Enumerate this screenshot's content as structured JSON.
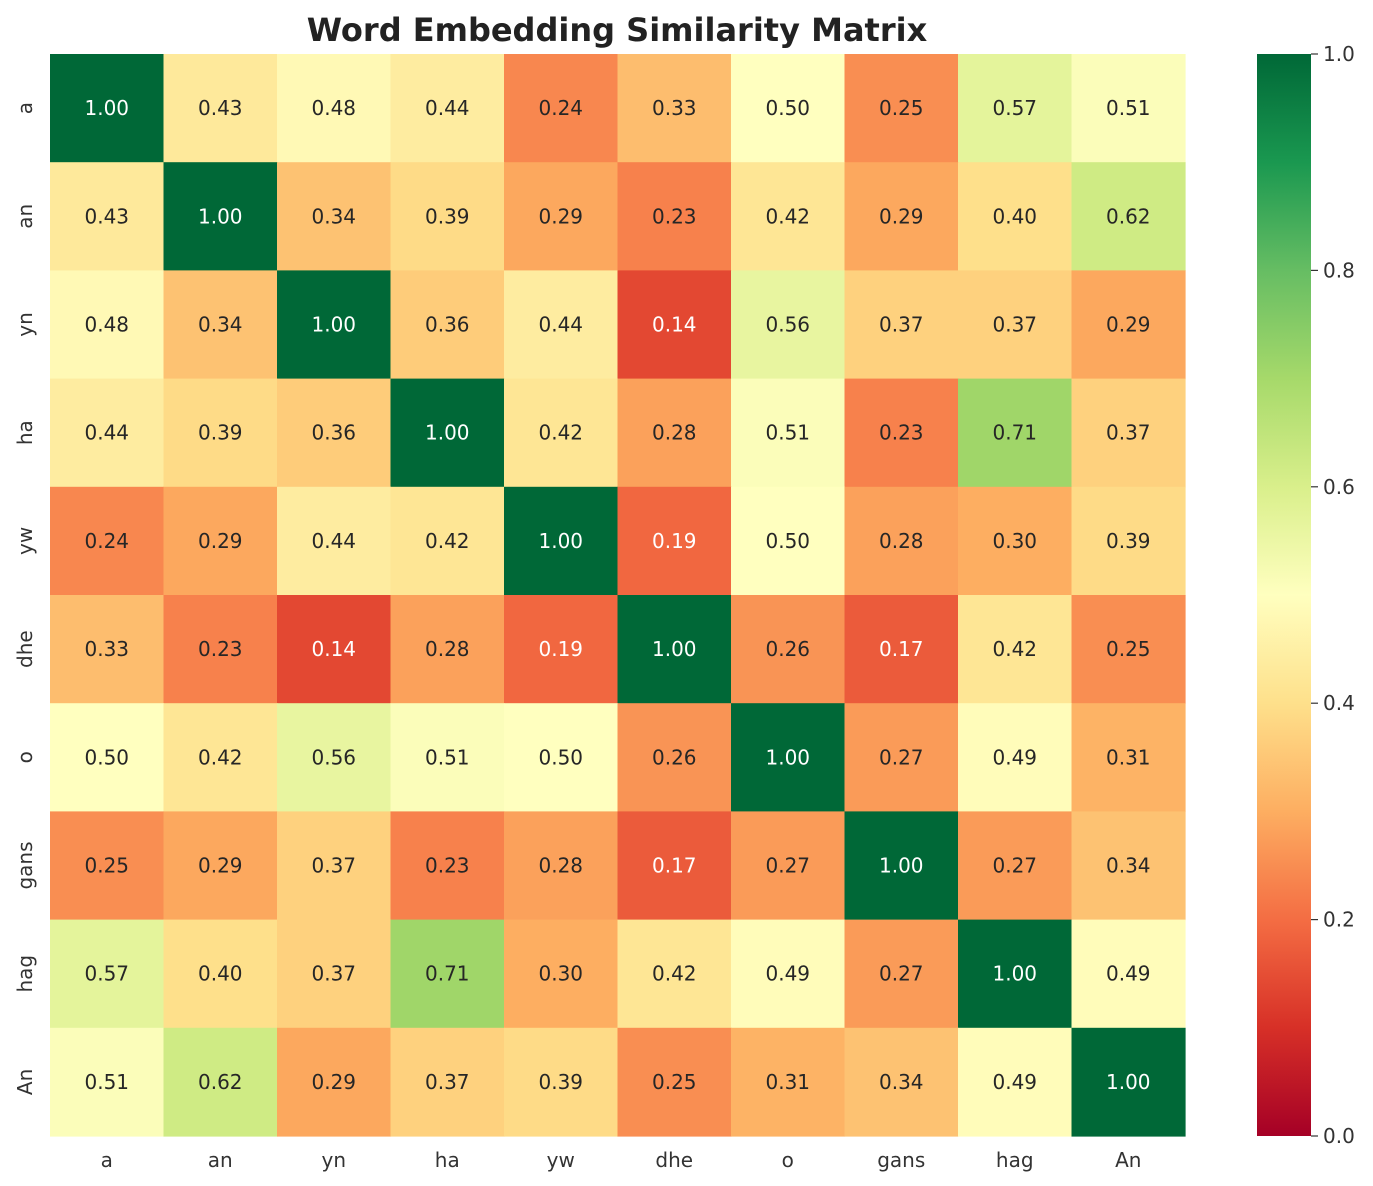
{
  "chart_data": {
    "type": "heatmap",
    "title": "Word Embedding Similarity Matrix",
    "x_labels": [
      "a",
      "an",
      "yn",
      "ha",
      "yw",
      "dhe",
      "o",
      "gans",
      "hag",
      "An"
    ],
    "y_labels": [
      "a",
      "an",
      "yn",
      "ha",
      "yw",
      "dhe",
      "o",
      "gans",
      "hag",
      "An"
    ],
    "values": [
      [
        1.0,
        0.43,
        0.48,
        0.44,
        0.24,
        0.33,
        0.5,
        0.25,
        0.57,
        0.51
      ],
      [
        0.43,
        1.0,
        0.34,
        0.39,
        0.29,
        0.23,
        0.42,
        0.29,
        0.4,
        0.62
      ],
      [
        0.48,
        0.34,
        1.0,
        0.36,
        0.44,
        0.14,
        0.56,
        0.37,
        0.37,
        0.29
      ],
      [
        0.44,
        0.39,
        0.36,
        1.0,
        0.42,
        0.28,
        0.51,
        0.23,
        0.71,
        0.37
      ],
      [
        0.24,
        0.29,
        0.44,
        0.42,
        1.0,
        0.19,
        0.5,
        0.28,
        0.3,
        0.39
      ],
      [
        0.33,
        0.23,
        0.14,
        0.28,
        0.19,
        1.0,
        0.26,
        0.17,
        0.42,
        0.25
      ],
      [
        0.5,
        0.42,
        0.56,
        0.51,
        0.5,
        0.26,
        1.0,
        0.27,
        0.49,
        0.31
      ],
      [
        0.25,
        0.29,
        0.37,
        0.23,
        0.28,
        0.17,
        0.27,
        1.0,
        0.27,
        0.34
      ],
      [
        0.57,
        0.4,
        0.37,
        0.71,
        0.3,
        0.42,
        0.49,
        0.27,
        1.0,
        0.49
      ],
      [
        0.51,
        0.62,
        0.29,
        0.37,
        0.39,
        0.25,
        0.31,
        0.34,
        0.49,
        1.0
      ]
    ],
    "value_format": "0.00",
    "colormap": "RdYlGn",
    "vmin": 0.0,
    "vmax": 1.0,
    "colorbar": {
      "ticks": [
        0.0,
        0.2,
        0.4,
        0.6,
        0.8,
        1.0
      ],
      "tick_labels": [
        "0.0",
        "0.2",
        "0.4",
        "0.6",
        "0.8",
        "1.0"
      ],
      "placement": "right"
    },
    "grid": false
  }
}
